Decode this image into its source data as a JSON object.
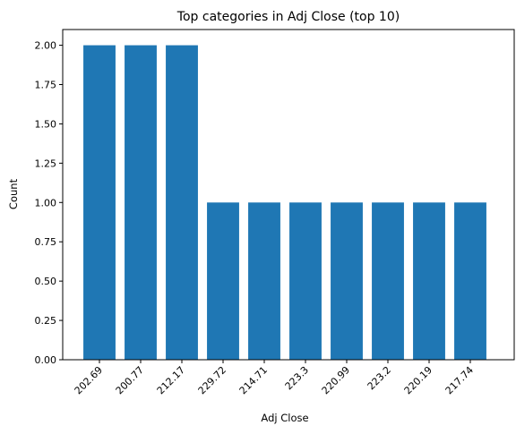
{
  "chart_data": {
    "type": "bar",
    "title": "Top categories in Adj Close (top 10)",
    "xlabel": "Adj Close",
    "ylabel": "Count",
    "categories": [
      "202.69",
      "200.77",
      "212.17",
      "229.72",
      "214.71",
      "223.3",
      "220.99",
      "223.2",
      "220.19",
      "217.74"
    ],
    "values": [
      2,
      2,
      2,
      1,
      1,
      1,
      1,
      1,
      1,
      1
    ],
    "ylim": [
      0,
      2.1
    ],
    "yticks": [
      "0.00",
      "0.25",
      "0.50",
      "0.75",
      "1.00",
      "1.25",
      "1.50",
      "1.75",
      "2.00"
    ],
    "bar_color": "#1f77b4",
    "grid": false
  }
}
